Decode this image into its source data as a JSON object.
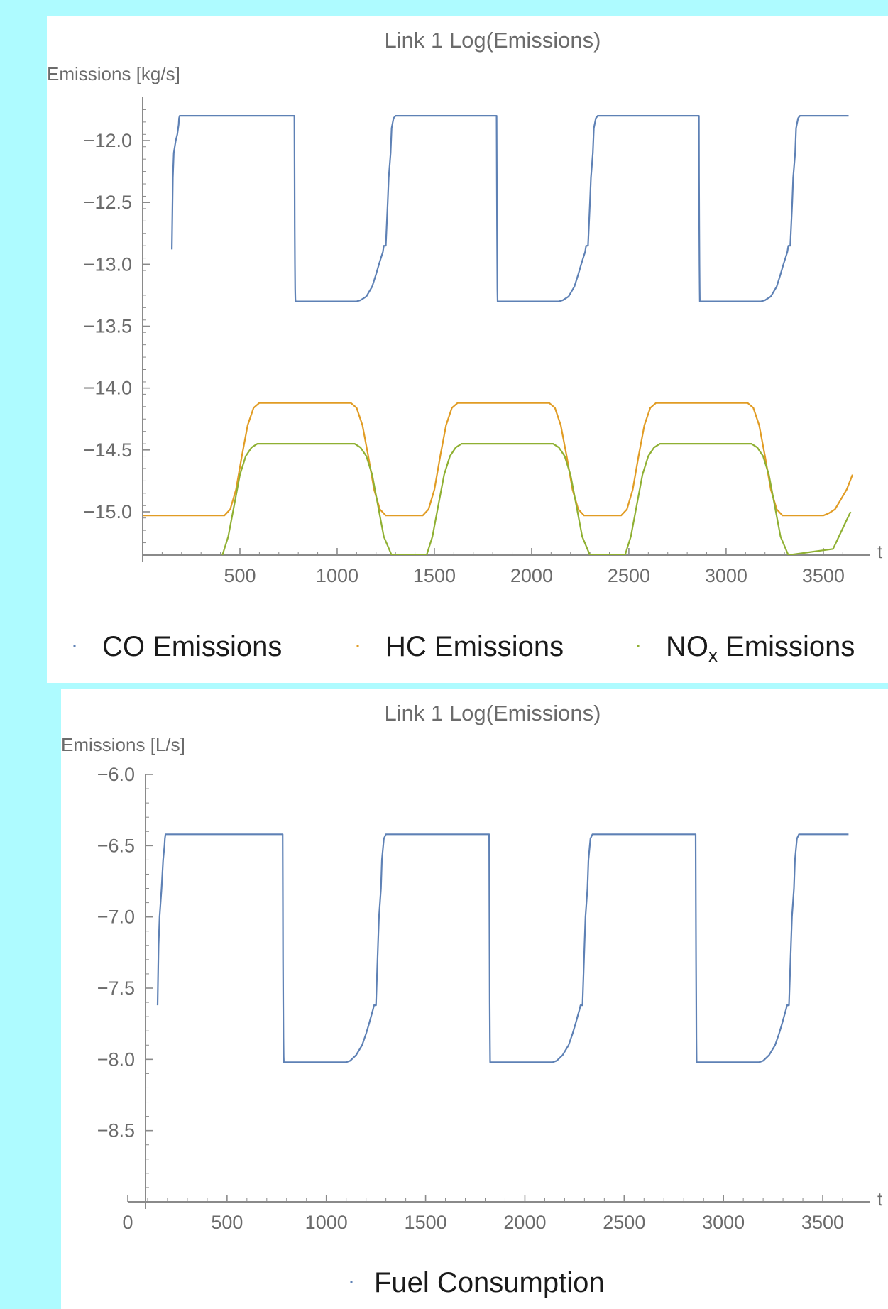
{
  "chart_data": [
    {
      "type": "line",
      "title": "Link 1 Log(Emissions)",
      "ylabel": "Emissions [kg/s]",
      "xlabel": "t",
      "xlim": [
        0,
        3650
      ],
      "ylim": [
        -15.35,
        -11.65
      ],
      "x_ticks": [
        500,
        1000,
        1500,
        2000,
        2500,
        3000,
        3500
      ],
      "y_ticks": [
        -12.0,
        -12.5,
        -13.0,
        -13.5,
        -14.0,
        -14.5,
        -15.0
      ],
      "x_tick_labels": [
        "500",
        "1000",
        "1500",
        "2000",
        "2500",
        "3000",
        "3500"
      ],
      "y_tick_labels": [
        "−12.0",
        "−12.5",
        "−13.0",
        "−13.5",
        "−14.0",
        "−14.5",
        "−15.0"
      ],
      "legend_position": "bottom",
      "series": [
        {
          "name": "CO Emissions",
          "color": "#5e81b5",
          "x": [
            150,
            155,
            160,
            170,
            178,
            185,
            187,
            190,
            200,
            210,
            780,
            781,
            782,
            783,
            784,
            785,
            786,
            1100,
            1120,
            1150,
            1180,
            1200,
            1215,
            1225,
            1235,
            1240,
            1250,
            1260,
            1265,
            1275,
            1280,
            1290,
            1300,
            1820,
            1821,
            1822,
            1823,
            1824,
            1825,
            2140,
            2160,
            2190,
            2220,
            2240,
            2255,
            2265,
            2275,
            2280,
            2290,
            2300,
            2305,
            2315,
            2320,
            2330,
            2340,
            2860,
            2861,
            2862,
            2863,
            2864,
            2865,
            3180,
            3200,
            3230,
            3260,
            3280,
            3295,
            3305,
            3315,
            3320,
            3330,
            3340,
            3345,
            3355,
            3360,
            3370,
            3380,
            3630
          ],
          "y": [
            -12.88,
            -12.3,
            -12.1,
            -12.0,
            -11.95,
            -11.87,
            -11.82,
            -11.8,
            -11.8,
            -11.8,
            -11.8,
            -12.3,
            -12.7,
            -13.0,
            -13.2,
            -13.28,
            -13.3,
            -13.3,
            -13.29,
            -13.26,
            -13.18,
            -13.08,
            -13.0,
            -12.95,
            -12.9,
            -12.85,
            -12.85,
            -12.5,
            -12.3,
            -12.1,
            -11.9,
            -11.82,
            -11.8,
            -11.8,
            -12.3,
            -12.7,
            -13.0,
            -13.2,
            -13.3,
            -13.3,
            -13.29,
            -13.26,
            -13.18,
            -13.08,
            -13.0,
            -12.95,
            -12.9,
            -12.85,
            -12.85,
            -12.5,
            -12.3,
            -12.1,
            -11.9,
            -11.82,
            -11.8,
            -11.8,
            -12.3,
            -12.7,
            -13.0,
            -13.2,
            -13.3,
            -13.3,
            -13.29,
            -13.26,
            -13.18,
            -13.08,
            -13.0,
            -12.95,
            -12.9,
            -12.85,
            -12.85,
            -12.5,
            -12.3,
            -12.1,
            -11.9,
            -11.82,
            -11.8,
            -11.8
          ]
        },
        {
          "name": "HC Emissions",
          "color": "#e19c24",
          "x": [
            0,
            420,
            450,
            480,
            510,
            540,
            570,
            600,
            800,
            1070,
            1100,
            1130,
            1160,
            1190,
            1220,
            1250,
            1300,
            1440,
            1470,
            1500,
            1530,
            1560,
            1590,
            1620,
            1820,
            2090,
            2120,
            2150,
            2180,
            2210,
            2240,
            2270,
            2320,
            2460,
            2490,
            2520,
            2550,
            2580,
            2610,
            2640,
            2840,
            3110,
            3140,
            3170,
            3200,
            3230,
            3260,
            3290,
            3340,
            3500,
            3530,
            3560,
            3590,
            3620,
            3650
          ],
          "y": [
            -15.03,
            -15.03,
            -14.98,
            -14.82,
            -14.55,
            -14.3,
            -14.16,
            -14.12,
            -14.12,
            -14.12,
            -14.16,
            -14.3,
            -14.55,
            -14.82,
            -14.98,
            -15.03,
            -15.03,
            -15.03,
            -14.98,
            -14.82,
            -14.55,
            -14.3,
            -14.16,
            -14.12,
            -14.12,
            -14.12,
            -14.16,
            -14.3,
            -14.55,
            -14.82,
            -14.98,
            -15.03,
            -15.03,
            -15.03,
            -14.98,
            -14.82,
            -14.55,
            -14.3,
            -14.16,
            -14.12,
            -14.12,
            -14.12,
            -14.16,
            -14.3,
            -14.55,
            -14.82,
            -14.98,
            -15.03,
            -15.03,
            -15.03,
            -15.01,
            -14.98,
            -14.9,
            -14.82,
            -14.7
          ]
        },
        {
          "name": "NOx Emissions",
          "color": "#8fb032",
          "x": [
            410,
            440,
            470,
            500,
            530,
            560,
            590,
            620,
            800,
            1090,
            1120,
            1150,
            1180,
            1210,
            1240,
            1280,
            1460,
            1490,
            1520,
            1550,
            1580,
            1610,
            1640,
            1840,
            2110,
            2140,
            2170,
            2200,
            2230,
            2260,
            2300,
            2480,
            2510,
            2540,
            2570,
            2600,
            2630,
            2660,
            2860,
            3130,
            3160,
            3190,
            3220,
            3250,
            3280,
            3320,
            3550,
            3580,
            3610,
            3640
          ],
          "y": [
            -15.35,
            -15.2,
            -14.95,
            -14.7,
            -14.55,
            -14.48,
            -14.45,
            -14.45,
            -14.45,
            -14.45,
            -14.48,
            -14.55,
            -14.7,
            -14.95,
            -15.2,
            -15.35,
            -15.35,
            -15.2,
            -14.95,
            -14.7,
            -14.55,
            -14.48,
            -14.45,
            -14.45,
            -14.45,
            -14.48,
            -14.55,
            -14.7,
            -14.95,
            -15.2,
            -15.35,
            -15.35,
            -15.2,
            -14.95,
            -14.7,
            -14.55,
            -14.48,
            -14.45,
            -14.45,
            -14.45,
            -14.48,
            -14.55,
            -14.7,
            -14.95,
            -15.2,
            -15.35,
            -15.3,
            -15.2,
            -15.1,
            -15.0
          ]
        }
      ],
      "legend": [
        {
          "label": "CO Emissions"
        },
        {
          "label": "HC Emissions"
        },
        {
          "label_main": "NO",
          "label_sub": "x",
          "label_rest": " Emissions"
        }
      ]
    },
    {
      "type": "line",
      "title": "Link 1 Log(Emissions)",
      "ylabel": "Emissions [L/s]",
      "xlabel": "t",
      "xlim": [
        0,
        3650
      ],
      "ylim": [
        -9.0,
        -6.0
      ],
      "x_ticks": [
        0,
        500,
        1000,
        1500,
        2000,
        2500,
        3000,
        3500
      ],
      "y_ticks": [
        -6.0,
        -6.5,
        -7.0,
        -7.5,
        -8.0,
        -8.5
      ],
      "x_tick_labels": [
        "0",
        "500",
        "1000",
        "1500",
        "2000",
        "2500",
        "3000",
        "3500"
      ],
      "y_tick_labels": [
        "−6.0",
        "−6.5",
        "−7.0",
        "−7.5",
        "−8.0",
        "−8.5"
      ],
      "legend_position": "bottom",
      "series": [
        {
          "name": "Fuel Consumption",
          "color": "#5e81b5",
          "x": [
            150,
            155,
            160,
            170,
            178,
            185,
            187,
            190,
            200,
            210,
            780,
            781,
            782,
            783,
            784,
            785,
            786,
            1100,
            1120,
            1150,
            1180,
            1200,
            1215,
            1225,
            1235,
            1240,
            1250,
            1260,
            1265,
            1275,
            1280,
            1290,
            1300,
            1820,
            1821,
            1822,
            1823,
            1824,
            1825,
            2140,
            2160,
            2190,
            2220,
            2240,
            2255,
            2265,
            2275,
            2280,
            2290,
            2300,
            2305,
            2315,
            2320,
            2330,
            2340,
            2860,
            2861,
            2862,
            2863,
            2864,
            2865,
            3180,
            3200,
            3230,
            3260,
            3280,
            3295,
            3305,
            3315,
            3320,
            3330,
            3340,
            3345,
            3355,
            3360,
            3370,
            3380,
            3630
          ],
          "y": [
            -7.62,
            -7.2,
            -7.0,
            -6.8,
            -6.6,
            -6.5,
            -6.45,
            -6.42,
            -6.42,
            -6.42,
            -6.42,
            -6.9,
            -7.3,
            -7.6,
            -7.85,
            -7.98,
            -8.02,
            -8.02,
            -8.01,
            -7.97,
            -7.9,
            -7.82,
            -7.75,
            -7.7,
            -7.65,
            -7.62,
            -7.62,
            -7.2,
            -7.0,
            -6.8,
            -6.6,
            -6.45,
            -6.42,
            -6.42,
            -6.9,
            -7.3,
            -7.6,
            -7.85,
            -8.02,
            -8.02,
            -8.01,
            -7.97,
            -7.9,
            -7.82,
            -7.75,
            -7.7,
            -7.65,
            -7.62,
            -7.62,
            -7.2,
            -7.0,
            -6.8,
            -6.6,
            -6.45,
            -6.42,
            -6.42,
            -6.9,
            -7.3,
            -7.6,
            -7.85,
            -8.02,
            -8.02,
            -8.01,
            -7.97,
            -7.9,
            -7.82,
            -7.75,
            -7.7,
            -7.65,
            -7.62,
            -7.62,
            -7.2,
            -7.0,
            -6.8,
            -6.6,
            -6.45,
            -6.42,
            -6.42
          ]
        }
      ],
      "legend": [
        {
          "label": "Fuel Consumption"
        }
      ]
    }
  ]
}
